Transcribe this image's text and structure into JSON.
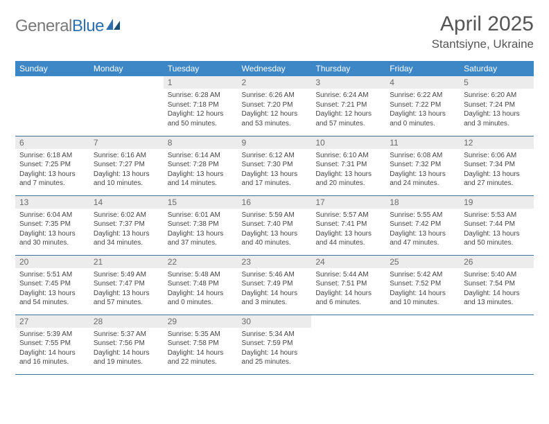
{
  "brand": {
    "part1": "General",
    "part2": "Blue"
  },
  "title": "April 2025",
  "location": "Stantsiyne, Ukraine",
  "colors": {
    "header_bg": "#3d87c7",
    "header_text": "#ffffff",
    "daynum_bg": "#ececec",
    "daynum_text": "#6a6a6a",
    "body_text": "#444444",
    "rule": "#3d6f9e",
    "logo_gray": "#7a7a7a",
    "logo_blue": "#2f6fae"
  },
  "weekdays": [
    "Sunday",
    "Monday",
    "Tuesday",
    "Wednesday",
    "Thursday",
    "Friday",
    "Saturday"
  ],
  "weeks": [
    [
      null,
      null,
      {
        "n": "1",
        "sr": "6:28 AM",
        "ss": "7:18 PM",
        "dl": "12 hours and 50 minutes."
      },
      {
        "n": "2",
        "sr": "6:26 AM",
        "ss": "7:20 PM",
        "dl": "12 hours and 53 minutes."
      },
      {
        "n": "3",
        "sr": "6:24 AM",
        "ss": "7:21 PM",
        "dl": "12 hours and 57 minutes."
      },
      {
        "n": "4",
        "sr": "6:22 AM",
        "ss": "7:22 PM",
        "dl": "13 hours and 0 minutes."
      },
      {
        "n": "5",
        "sr": "6:20 AM",
        "ss": "7:24 PM",
        "dl": "13 hours and 3 minutes."
      }
    ],
    [
      {
        "n": "6",
        "sr": "6:18 AM",
        "ss": "7:25 PM",
        "dl": "13 hours and 7 minutes."
      },
      {
        "n": "7",
        "sr": "6:16 AM",
        "ss": "7:27 PM",
        "dl": "13 hours and 10 minutes."
      },
      {
        "n": "8",
        "sr": "6:14 AM",
        "ss": "7:28 PM",
        "dl": "13 hours and 14 minutes."
      },
      {
        "n": "9",
        "sr": "6:12 AM",
        "ss": "7:30 PM",
        "dl": "13 hours and 17 minutes."
      },
      {
        "n": "10",
        "sr": "6:10 AM",
        "ss": "7:31 PM",
        "dl": "13 hours and 20 minutes."
      },
      {
        "n": "11",
        "sr": "6:08 AM",
        "ss": "7:32 PM",
        "dl": "13 hours and 24 minutes."
      },
      {
        "n": "12",
        "sr": "6:06 AM",
        "ss": "7:34 PM",
        "dl": "13 hours and 27 minutes."
      }
    ],
    [
      {
        "n": "13",
        "sr": "6:04 AM",
        "ss": "7:35 PM",
        "dl": "13 hours and 30 minutes."
      },
      {
        "n": "14",
        "sr": "6:02 AM",
        "ss": "7:37 PM",
        "dl": "13 hours and 34 minutes."
      },
      {
        "n": "15",
        "sr": "6:01 AM",
        "ss": "7:38 PM",
        "dl": "13 hours and 37 minutes."
      },
      {
        "n": "16",
        "sr": "5:59 AM",
        "ss": "7:40 PM",
        "dl": "13 hours and 40 minutes."
      },
      {
        "n": "17",
        "sr": "5:57 AM",
        "ss": "7:41 PM",
        "dl": "13 hours and 44 minutes."
      },
      {
        "n": "18",
        "sr": "5:55 AM",
        "ss": "7:42 PM",
        "dl": "13 hours and 47 minutes."
      },
      {
        "n": "19",
        "sr": "5:53 AM",
        "ss": "7:44 PM",
        "dl": "13 hours and 50 minutes."
      }
    ],
    [
      {
        "n": "20",
        "sr": "5:51 AM",
        "ss": "7:45 PM",
        "dl": "13 hours and 54 minutes."
      },
      {
        "n": "21",
        "sr": "5:49 AM",
        "ss": "7:47 PM",
        "dl": "13 hours and 57 minutes."
      },
      {
        "n": "22",
        "sr": "5:48 AM",
        "ss": "7:48 PM",
        "dl": "14 hours and 0 minutes."
      },
      {
        "n": "23",
        "sr": "5:46 AM",
        "ss": "7:49 PM",
        "dl": "14 hours and 3 minutes."
      },
      {
        "n": "24",
        "sr": "5:44 AM",
        "ss": "7:51 PM",
        "dl": "14 hours and 6 minutes."
      },
      {
        "n": "25",
        "sr": "5:42 AM",
        "ss": "7:52 PM",
        "dl": "14 hours and 10 minutes."
      },
      {
        "n": "26",
        "sr": "5:40 AM",
        "ss": "7:54 PM",
        "dl": "14 hours and 13 minutes."
      }
    ],
    [
      {
        "n": "27",
        "sr": "5:39 AM",
        "ss": "7:55 PM",
        "dl": "14 hours and 16 minutes."
      },
      {
        "n": "28",
        "sr": "5:37 AM",
        "ss": "7:56 PM",
        "dl": "14 hours and 19 minutes."
      },
      {
        "n": "29",
        "sr": "5:35 AM",
        "ss": "7:58 PM",
        "dl": "14 hours and 22 minutes."
      },
      {
        "n": "30",
        "sr": "5:34 AM",
        "ss": "7:59 PM",
        "dl": "14 hours and 25 minutes."
      },
      null,
      null,
      null
    ]
  ],
  "labels": {
    "sunrise": "Sunrise: ",
    "sunset": "Sunset: ",
    "daylight": "Daylight: "
  }
}
